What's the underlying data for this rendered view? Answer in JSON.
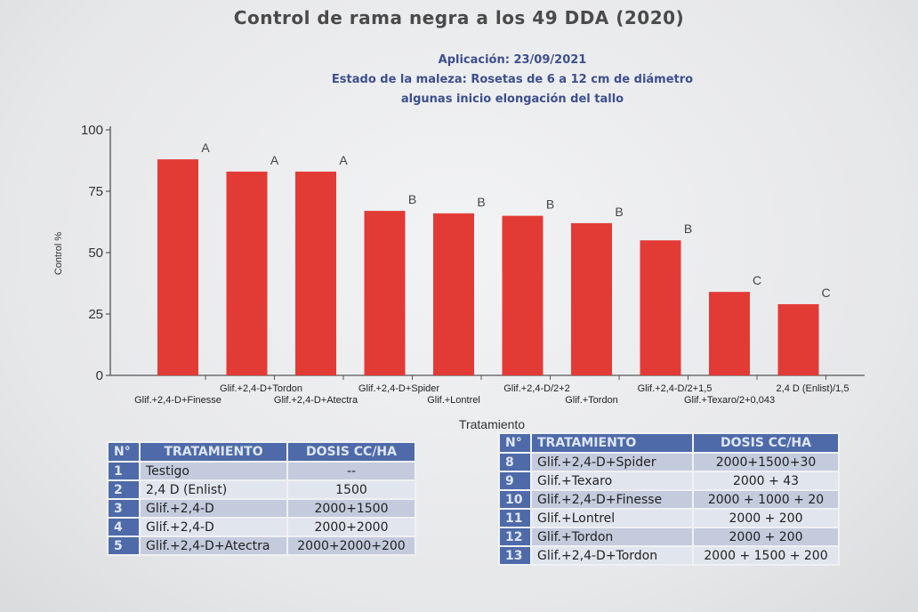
{
  "title": "Control de rama negra a los 49 DDA (2020)",
  "subtitle_lines": [
    "Aplicación: 23/09/2021",
    "Estado de la maleza: Rosetas de 6 a 12 cm de diámetro",
    "algunas inicio elongación del tallo"
  ],
  "chart_data": {
    "type": "bar",
    "ylabel": "Control %",
    "xlabel": "Tratamiento",
    "ylim": [
      0,
      100
    ],
    "yticks": [
      0,
      25,
      50,
      75,
      100
    ],
    "categories": [
      "Glif.+2,4-D+Finesse",
      "Glif.+2,4-D+Tordon",
      "Glif.+2,4-D+Atectra",
      "Glif.+2,4-D+Spider",
      "Glif.+Lontrel",
      "Glif.+2,4-D/2+2",
      "Glif.+Tordon",
      "Glif.+2,4-D/2+1,5",
      "Glif.+Texaro/2+0,043",
      "2,4 D (Enlist)/1,5"
    ],
    "values": [
      88,
      83,
      83,
      67,
      66,
      65,
      62,
      55,
      34,
      29
    ],
    "significance_letters": [
      "A",
      "A",
      "A",
      "B",
      "B",
      "B",
      "B",
      "B",
      "C",
      "C"
    ],
    "bar_color": "#e23b36",
    "grid": false
  },
  "table_left": {
    "headers": [
      "N°",
      "TRATAMIENTO",
      "DOSIS CC/HA"
    ],
    "rows": [
      [
        "1",
        "Testigo",
        "--"
      ],
      [
        "2",
        "2,4 D (Enlist)",
        "1500"
      ],
      [
        "3",
        "Glif.+2,4-D",
        "2000+1500"
      ],
      [
        "4",
        "Glif.+2,4-D",
        "2000+2000"
      ],
      [
        "5",
        "Glif.+2,4-D+Atectra",
        "2000+2000+200"
      ]
    ]
  },
  "table_right": {
    "headers": [
      "N°",
      "TRATAMIENTO",
      "DOSIS CC/HA"
    ],
    "rows": [
      [
        "8",
        "Glif.+2,4-D+Spider",
        "2000+1500+30"
      ],
      [
        "9",
        "Glif.+Texaro",
        "2000 + 43"
      ],
      [
        "10",
        "Glif.+2,4-D+Finesse",
        "2000 + 1000 + 20"
      ],
      [
        "11",
        "Glif.+Lontrel",
        "2000 + 200"
      ],
      [
        "12",
        "Glif.+Tordon",
        "2000 + 200"
      ],
      [
        "13",
        "Glif.+2,4-D+Tordon",
        "2000 + 1500 + 200"
      ]
    ]
  }
}
